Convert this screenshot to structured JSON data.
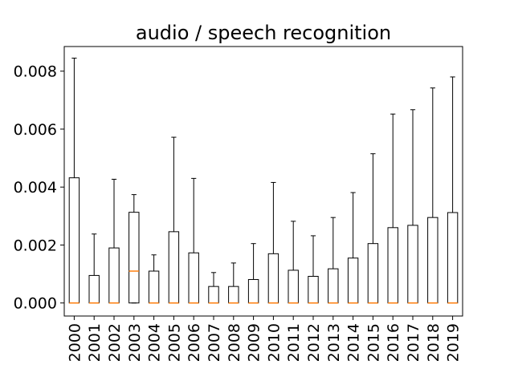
{
  "chart_data": {
    "type": "box",
    "title": "audio / speech recognition",
    "xlabel": "",
    "ylabel": "",
    "ylim": [
      -0.00045,
      0.00885
    ],
    "yticks": [
      0.0,
      0.002,
      0.004,
      0.006,
      0.008
    ],
    "ytick_labels": [
      "0.000",
      "0.002",
      "0.004",
      "0.006",
      "0.008"
    ],
    "grid": false,
    "colors": {
      "box": "#000000",
      "median": "#ff7f0e",
      "background": "#ffffff"
    },
    "categories": [
      "2000",
      "2001",
      "2002",
      "2003",
      "2004",
      "2005",
      "2006",
      "2007",
      "2008",
      "2009",
      "2010",
      "2011",
      "2012",
      "2013",
      "2014",
      "2015",
      "2016",
      "2017",
      "2018",
      "2019"
    ],
    "boxes": [
      {
        "q1": 0,
        "median": 0,
        "q3": 0.00432,
        "whisker_low": 0,
        "whisker_high": 0.00845
      },
      {
        "q1": 0,
        "median": 0,
        "q3": 0.00095,
        "whisker_low": 0,
        "whisker_high": 0.00238
      },
      {
        "q1": 0,
        "median": 0,
        "q3": 0.0019,
        "whisker_low": 0,
        "whisker_high": 0.00427
      },
      {
        "q1": 0,
        "median": 0.0011,
        "q3": 0.00313,
        "whisker_low": 0,
        "whisker_high": 0.00374
      },
      {
        "q1": 0,
        "median": 0,
        "q3": 0.0011,
        "whisker_low": 0,
        "whisker_high": 0.00166
      },
      {
        "q1": 0,
        "median": 0,
        "q3": 0.00246,
        "whisker_low": 0,
        "whisker_high": 0.00572
      },
      {
        "q1": 0,
        "median": 0,
        "q3": 0.00173,
        "whisker_low": 0,
        "whisker_high": 0.0043
      },
      {
        "q1": 0,
        "median": 0,
        "q3": 0.00057,
        "whisker_low": 0,
        "whisker_high": 0.00105
      },
      {
        "q1": 0,
        "median": 0,
        "q3": 0.00057,
        "whisker_low": 0,
        "whisker_high": 0.00138
      },
      {
        "q1": 0,
        "median": 0,
        "q3": 0.00081,
        "whisker_low": 0,
        "whisker_high": 0.00205
      },
      {
        "q1": 0,
        "median": 0,
        "q3": 0.0017,
        "whisker_low": 0,
        "whisker_high": 0.00416
      },
      {
        "q1": 0,
        "median": 0,
        "q3": 0.00113,
        "whisker_low": 0,
        "whisker_high": 0.00282
      },
      {
        "q1": 0,
        "median": 0,
        "q3": 0.00092,
        "whisker_low": 0,
        "whisker_high": 0.00232
      },
      {
        "q1": 0,
        "median": 0,
        "q3": 0.00118,
        "whisker_low": 0,
        "whisker_high": 0.00295
      },
      {
        "q1": 0,
        "median": 0,
        "q3": 0.00155,
        "whisker_low": 0,
        "whisker_high": 0.00381
      },
      {
        "q1": 0,
        "median": 0,
        "q3": 0.00205,
        "whisker_low": 0,
        "whisker_high": 0.00515
      },
      {
        "q1": 0,
        "median": 0,
        "q3": 0.0026,
        "whisker_low": 0,
        "whisker_high": 0.00652
      },
      {
        "q1": 0,
        "median": 0,
        "q3": 0.00268,
        "whisker_low": 0,
        "whisker_high": 0.00667
      },
      {
        "q1": 0,
        "median": 0,
        "q3": 0.00295,
        "whisker_low": 0,
        "whisker_high": 0.00742
      },
      {
        "q1": 0,
        "median": 0,
        "q3": 0.00312,
        "whisker_low": 0,
        "whisker_high": 0.0078
      }
    ]
  }
}
